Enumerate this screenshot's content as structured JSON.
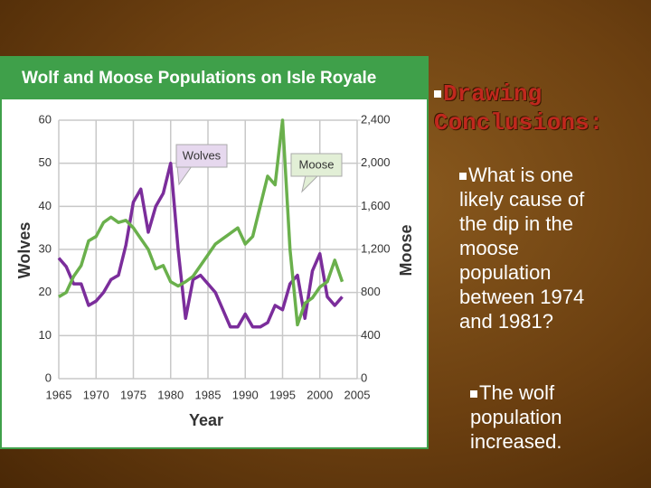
{
  "chart_data": {
    "type": "line",
    "title": "Wolf and Moose Populations on Isle Royale",
    "x_label": "Year",
    "y_label": "Wolves",
    "y2_label": "Moose",
    "annotations": [
      "Wolves",
      "Moose"
    ],
    "x": [
      1965,
      1966,
      1967,
      1968,
      1969,
      1970,
      1971,
      1972,
      1973,
      1974,
      1975,
      1976,
      1977,
      1978,
      1979,
      1980,
      1981,
      1982,
      1983,
      1984,
      1985,
      1986,
      1987,
      1988,
      1989,
      1990,
      1991,
      1992,
      1993,
      1994,
      1995,
      1996,
      1997,
      1998,
      1999,
      2000,
      2001,
      2002,
      2003
    ],
    "series": [
      {
        "name": "Wolves",
        "color": "#7b2d9b",
        "axis": "y",
        "values": [
          28,
          26,
          22,
          22,
          17,
          18,
          20,
          23,
          24,
          31,
          41,
          44,
          34,
          40,
          43,
          50,
          30,
          14,
          23,
          24,
          22,
          20,
          16,
          12,
          12,
          15,
          12,
          12,
          13,
          17,
          16,
          22,
          24,
          14,
          25,
          29,
          19,
          17,
          19
        ]
      },
      {
        "name": "Moose",
        "color": "#6ab04c",
        "axis": "y2",
        "values": [
          760,
          800,
          950,
          1050,
          1280,
          1320,
          1450,
          1500,
          1450,
          1470,
          1400,
          1300,
          1200,
          1020,
          1050,
          900,
          860,
          900,
          950,
          1050,
          1150,
          1250,
          1300,
          1350,
          1400,
          1250,
          1320,
          1600,
          1880,
          1800,
          2400,
          1200,
          500,
          700,
          750,
          850,
          900,
          1100,
          900
        ]
      }
    ],
    "xlim": [
      1965,
      2005
    ],
    "xticks": [
      1965,
      1970,
      1975,
      1980,
      1985,
      1990,
      1995,
      2000,
      2005
    ],
    "ylim": [
      0,
      60
    ],
    "yticks": [
      0,
      10,
      20,
      30,
      40,
      50,
      60
    ],
    "y2lim": [
      0,
      2400
    ],
    "y2ticks": [
      0,
      400,
      800,
      {
        "value": 1200,
        "label": "1,200"
      },
      {
        "value": 1600,
        "label": "1,600"
      },
      {
        "value": 2000,
        "label": "2,000"
      },
      {
        "value": 2400,
        "label": "2,400"
      }
    ],
    "grid": true
  },
  "slide": {
    "heading": "Drawing Conclusions:",
    "question": "What is one likely cause of the dip in the moose population between 1974 and 1981?",
    "answer": "The wolf population increased."
  }
}
